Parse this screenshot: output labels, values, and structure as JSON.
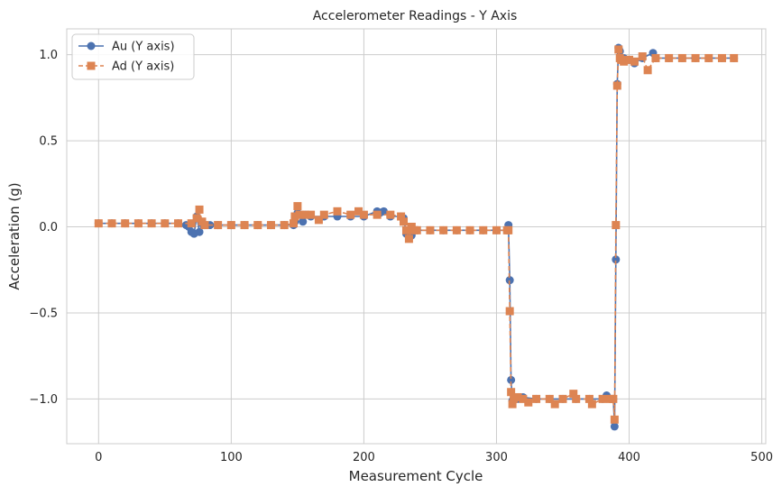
{
  "chart_data": {
    "type": "line",
    "title": "Accelerometer Readings - Y Axis",
    "xlabel": "Measurement Cycle",
    "ylabel": "Acceleration (g)",
    "xlim": [
      -24,
      503
    ],
    "ylim": [
      -1.26,
      1.15
    ],
    "xticks": [
      0,
      100,
      200,
      300,
      400,
      500
    ],
    "xtick_labels": [
      "0",
      "100",
      "200",
      "300",
      "400",
      "500"
    ],
    "yticks": [
      -1.0,
      -0.5,
      0.0,
      0.5,
      1.0
    ],
    "ytick_labels": [
      "−1.0",
      "−0.5",
      "0.0",
      "0.5",
      "1.0"
    ],
    "grid": true,
    "legend_position": "top-left",
    "series": [
      {
        "name": "Au (Y axis)",
        "color": "#4c72b0",
        "marker": "circle",
        "linestyle": "solid",
        "x": [
          0,
          10,
          20,
          30,
          40,
          50,
          60,
          66,
          68,
          70,
          72,
          74,
          76,
          78,
          80,
          84,
          90,
          100,
          110,
          120,
          130,
          140,
          147,
          148,
          150,
          152,
          154,
          156,
          160,
          170,
          180,
          190,
          200,
          210,
          212,
          215,
          220,
          228,
          230,
          232,
          234,
          236,
          238,
          240,
          250,
          260,
          270,
          280,
          290,
          300,
          308,
          309,
          310,
          311,
          312,
          313,
          314,
          316,
          320,
          330,
          340,
          350,
          360,
          370,
          380,
          383,
          386,
          388,
          389,
          390,
          391,
          392,
          393,
          394,
          396,
          400,
          404,
          410,
          418,
          420,
          430,
          440,
          450,
          460,
          470,
          479
        ],
        "values": [
          0.02,
          0.02,
          0.02,
          0.02,
          0.02,
          0.02,
          0.02,
          0.01,
          0.0,
          -0.03,
          -0.04,
          0.06,
          -0.03,
          0.02,
          0.01,
          0.01,
          0.01,
          0.01,
          0.01,
          0.01,
          0.01,
          0.01,
          0.01,
          0.03,
          0.08,
          0.07,
          0.03,
          0.07,
          0.06,
          0.06,
          0.06,
          0.06,
          0.06,
          0.09,
          0.08,
          0.09,
          0.06,
          0.06,
          0.05,
          -0.04,
          -0.06,
          -0.05,
          -0.02,
          -0.02,
          -0.02,
          -0.02,
          -0.02,
          -0.02,
          -0.02,
          -0.02,
          -0.02,
          0.01,
          -0.31,
          -0.89,
          -1.01,
          -1.0,
          -1.0,
          -1.0,
          -0.99,
          -1.0,
          -1.0,
          -1.0,
          -1.0,
          -1.0,
          -1.0,
          -0.98,
          -1.0,
          -1.0,
          -1.16,
          -0.19,
          0.83,
          1.04,
          1.02,
          0.97,
          0.98,
          0.97,
          0.95,
          0.98,
          1.01,
          0.98,
          0.98,
          0.98,
          0.98,
          0.98,
          0.98,
          0.98
        ]
      },
      {
        "name": "Ad (Y axis)",
        "color": "#dd8452",
        "marker": "square",
        "linestyle": "dashed",
        "x": [
          0,
          10,
          20,
          30,
          40,
          50,
          60,
          70,
          74,
          76,
          78,
          80,
          90,
          100,
          110,
          120,
          130,
          140,
          147,
          148,
          150,
          152,
          156,
          160,
          166,
          170,
          180,
          190,
          196,
          200,
          210,
          220,
          228,
          230,
          232,
          234,
          236,
          238,
          240,
          250,
          260,
          270,
          280,
          290,
          300,
          308,
          309,
          310,
          311,
          312,
          313,
          316,
          320,
          324,
          330,
          340,
          344,
          350,
          358,
          360,
          370,
          372,
          380,
          386,
          388,
          389,
          390,
          391,
          392,
          393,
          394,
          396,
          400,
          404,
          410,
          414,
          420,
          430,
          440,
          450,
          460,
          470,
          479
        ],
        "values": [
          0.02,
          0.02,
          0.02,
          0.02,
          0.02,
          0.02,
          0.02,
          0.02,
          0.05,
          0.1,
          0.03,
          0.01,
          0.01,
          0.01,
          0.01,
          0.01,
          0.01,
          0.01,
          0.02,
          0.06,
          0.12,
          0.07,
          0.07,
          0.07,
          0.04,
          0.07,
          0.09,
          0.07,
          0.09,
          0.07,
          0.07,
          0.07,
          0.06,
          0.03,
          -0.02,
          -0.07,
          0.0,
          -0.02,
          -0.02,
          -0.02,
          -0.02,
          -0.02,
          -0.02,
          -0.02,
          -0.02,
          -0.02,
          -0.02,
          -0.49,
          -0.96,
          -1.03,
          -1.0,
          -0.99,
          -1.0,
          -1.02,
          -1.0,
          -1.0,
          -1.03,
          -1.0,
          -0.97,
          -1.0,
          -1.0,
          -1.03,
          -1.0,
          -1.0,
          -1.0,
          -1.12,
          0.01,
          0.82,
          1.03,
          0.98,
          0.97,
          0.96,
          0.97,
          0.96,
          0.99,
          0.91,
          0.98,
          0.98,
          0.98,
          0.98,
          0.98,
          0.98,
          0.98
        ]
      }
    ]
  }
}
